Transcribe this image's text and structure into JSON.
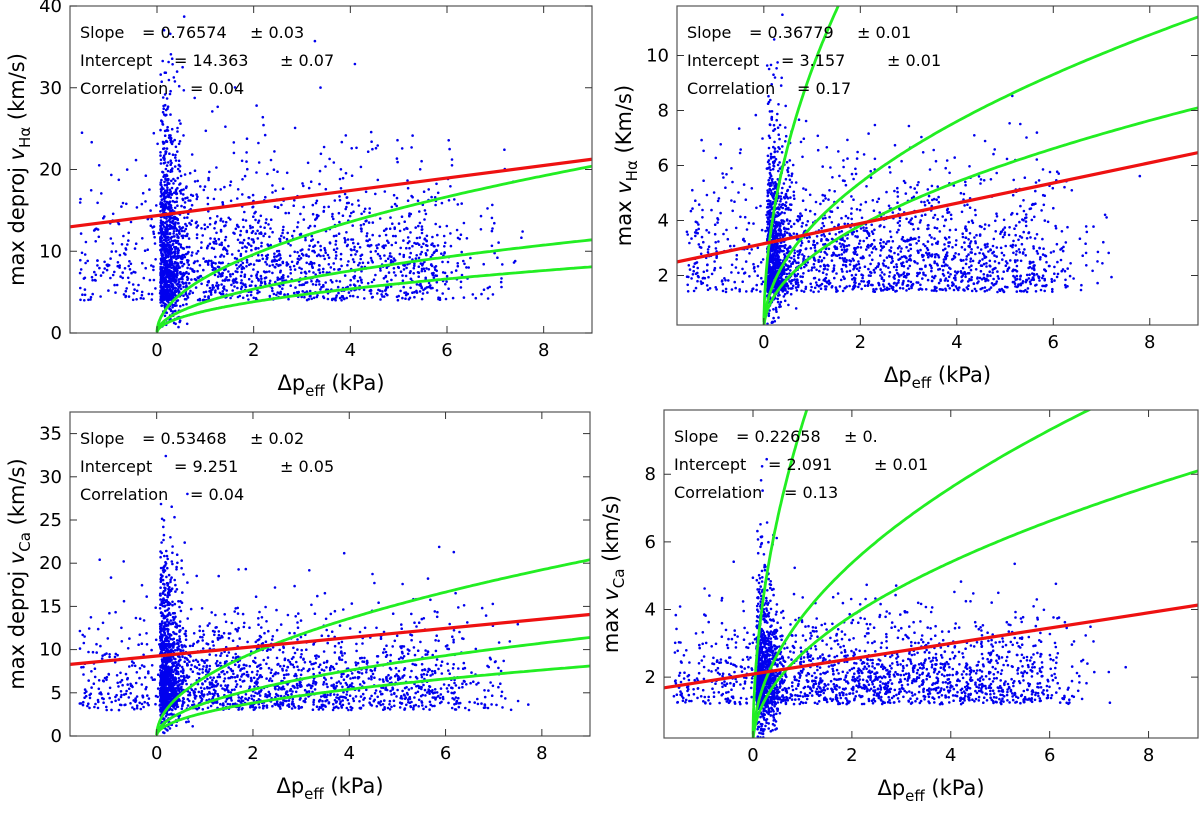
{
  "figure": {
    "description_free": true
  },
  "colors": {
    "points": "#0000ee",
    "fit_line": "#ee1111",
    "model_curve": "#22ee22",
    "frame": "#555555"
  },
  "chart_data": [
    {
      "type": "scatter",
      "id": "top-left",
      "xlabel": "Δp",
      "xlabel_sub": "eff",
      "xlabel_unit": " (kPa)",
      "ylabel_prefix": "max deproj ",
      "ylabel_var": "v",
      "ylabel_sub": "Hα",
      "ylabel_unit": " (km/s)",
      "xlim": [
        -1.8,
        9.0
      ],
      "ylim": [
        0,
        40
      ],
      "xticks": [
        0,
        2,
        4,
        6,
        8
      ],
      "yticks": [
        0,
        10,
        20,
        30,
        40
      ],
      "stats": [
        {
          "label": "Slope",
          "value": "= 0.76574",
          "err": "± 0.03"
        },
        {
          "label": "Intercept",
          "value": "= 14.363",
          "err": "± 0.07"
        },
        {
          "label": "Correlation",
          "value": "= 0.04",
          "err": ""
        }
      ],
      "fit": {
        "slope": 0.76574,
        "intercept": 14.363
      },
      "model_curves": [
        {
          "coef": 6.8
        },
        {
          "coef": 3.8
        },
        {
          "coef": 2.7
        }
      ],
      "scatter": {
        "n": 2600,
        "x_center": 0.15,
        "x_spread": 5.8,
        "y_base": 4,
        "y_spread": 16,
        "y_max": 40
      }
    },
    {
      "type": "scatter",
      "id": "top-right",
      "xlabel": "Δp",
      "xlabel_sub": "eff",
      "xlabel_unit": " (kPa)",
      "ylabel_prefix": "max ",
      "ylabel_var": "v",
      "ylabel_sub": "Hα",
      "ylabel_unit": " (Km/s)",
      "xlim": [
        -1.8,
        9.0
      ],
      "ylim": [
        0.2,
        11.8
      ],
      "xticks": [
        0,
        2,
        4,
        6,
        8
      ],
      "yticks": [
        2,
        4,
        6,
        8,
        10
      ],
      "stats": [
        {
          "label": "Slope",
          "value": "= 0.36779",
          "err": "± 0.01"
        },
        {
          "label": "Intercept",
          "value": "= 3.157",
          "err": "± 0.01"
        },
        {
          "label": "Correlation",
          "value": "= 0.17",
          "err": ""
        }
      ],
      "fit": {
        "slope": 0.36779,
        "intercept": 3.157
      },
      "model_curves": [
        {
          "coef": 9.5
        },
        {
          "coef": 3.8
        },
        {
          "coef": 2.7
        }
      ],
      "scatter": {
        "n": 2600,
        "x_center": 0.15,
        "x_spread": 5.5,
        "y_base": 1.4,
        "y_spread": 4.2,
        "y_max": 11.8
      }
    },
    {
      "type": "scatter",
      "id": "bottom-left",
      "xlabel": "Δp",
      "xlabel_sub": "eff",
      "xlabel_unit": " (kPa)",
      "ylabel_prefix": "max deproj ",
      "ylabel_var": "v",
      "ylabel_sub": "Ca",
      "ylabel_unit": " (km/s)",
      "xlim": [
        -1.8,
        9.0
      ],
      "ylim": [
        0,
        37.5
      ],
      "xticks": [
        0,
        2,
        4,
        6,
        8
      ],
      "yticks": [
        0,
        5,
        10,
        15,
        20,
        25,
        30,
        35
      ],
      "stats": [
        {
          "label": "Slope",
          "value": "= 0.53468",
          "err": "± 0.02"
        },
        {
          "label": "Intercept",
          "value": "= 9.251",
          "err": "± 0.05"
        },
        {
          "label": "Correlation",
          "value": "= 0.04",
          "err": ""
        }
      ],
      "fit": {
        "slope": 0.53468,
        "intercept": 9.251
      },
      "model_curves": [
        {
          "coef": 6.8
        },
        {
          "coef": 3.8
        },
        {
          "coef": 2.7
        }
      ],
      "scatter": {
        "n": 2600,
        "x_center": 0.15,
        "x_spread": 5.8,
        "y_base": 3,
        "y_spread": 11,
        "y_max": 37
      }
    },
    {
      "type": "scatter",
      "id": "bottom-right",
      "xlabel": "Δp",
      "xlabel_sub": "eff",
      "xlabel_unit": " (kPa)",
      "ylabel_prefix": "max ",
      "ylabel_var": "v",
      "ylabel_sub": "Ca",
      "ylabel_unit": " (km/s)",
      "xlim": [
        -1.8,
        9.0
      ],
      "ylim": [
        0.2,
        9.9
      ],
      "xticks": [
        0,
        2,
        4,
        6,
        8
      ],
      "yticks": [
        2,
        4,
        6,
        8
      ],
      "stats": [
        {
          "label": "Slope",
          "value": "= 0.22658",
          "err": "± 0."
        },
        {
          "label": "Intercept",
          "value": "= 2.091",
          "err": "± 0.01"
        },
        {
          "label": "Correlation",
          "value": "= 0.13",
          "err": ""
        }
      ],
      "fit": {
        "slope": 0.22658,
        "intercept": 2.091
      },
      "model_curves": [
        {
          "coef": 9.5
        },
        {
          "coef": 3.8
        },
        {
          "coef": 2.7
        }
      ],
      "scatter": {
        "n": 2600,
        "x_center": 0.15,
        "x_spread": 5.5,
        "y_base": 1.2,
        "y_spread": 2.6,
        "y_max": 9.9
      }
    }
  ]
}
